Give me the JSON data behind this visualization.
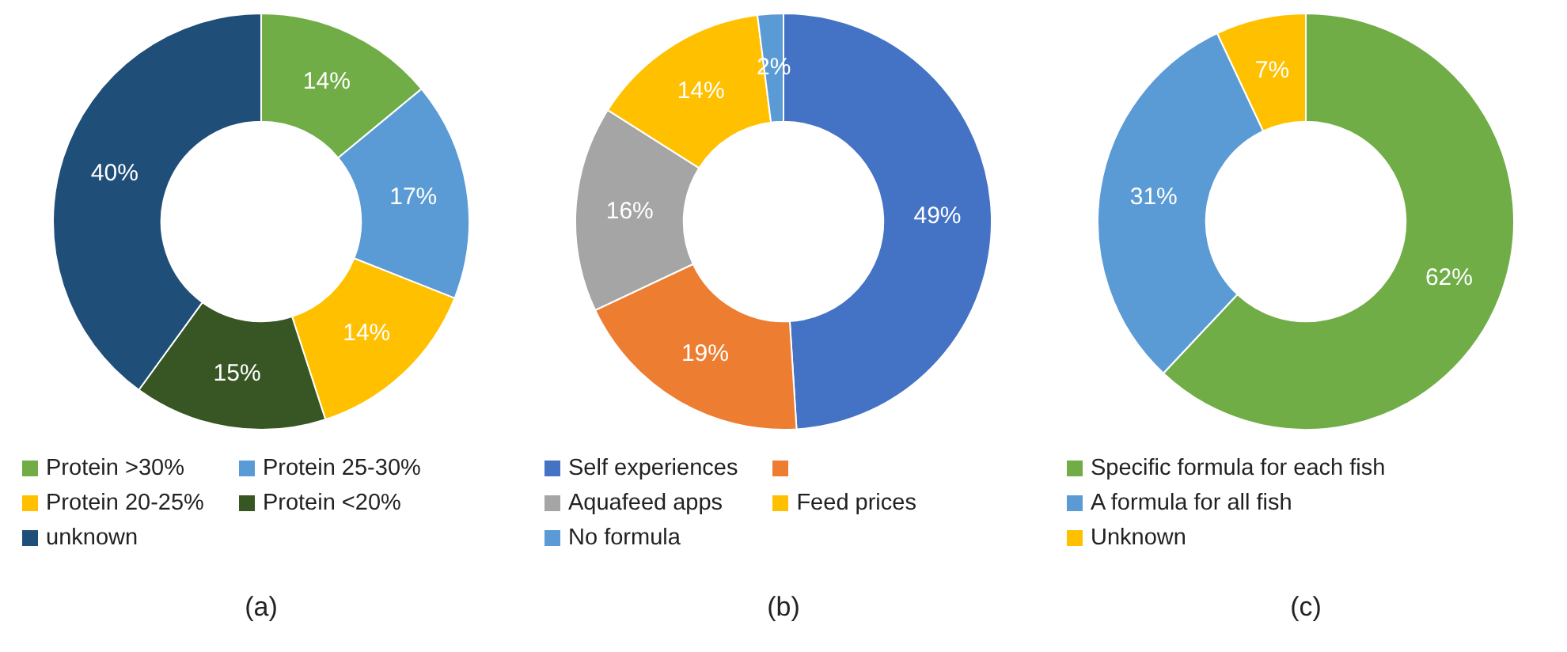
{
  "chart_data": [
    {
      "type": "donut",
      "title": "(a)",
      "categories": [
        "Protein >30%",
        "Protein 25-30%",
        "Protein 20-25%",
        "Protein <20%",
        "unknown"
      ],
      "values": [
        14,
        17,
        14,
        15,
        40
      ],
      "colors": [
        "#70ad47",
        "#5b9bd5",
        "#ffc000",
        "#375623",
        "#1f4e79"
      ],
      "value_labels": [
        "14%",
        "17%",
        "14%",
        "15%",
        "40%"
      ],
      "legend": "bottom"
    },
    {
      "type": "donut",
      "title": "(b)",
      "categories": [
        "Self experiences",
        null,
        "Aquafeed apps",
        "Feed prices",
        "No formula"
      ],
      "values": [
        49,
        19,
        16,
        14,
        2
      ],
      "colors": [
        "#4472c4",
        "#ed7d31",
        "#a5a5a5",
        "#ffc000",
        "#5b9bd5"
      ],
      "value_labels": [
        "49%",
        "19%",
        "16%",
        "14%",
        "2%"
      ],
      "legend": "bottom"
    },
    {
      "type": "donut",
      "title": "(c)",
      "categories": [
        "Specific formula for each fish",
        "A formula for all fish",
        "Unknown"
      ],
      "values": [
        62,
        31,
        7
      ],
      "colors": [
        "#70ad47",
        "#5b9bd5",
        "#ffc000"
      ],
      "value_labels": [
        "62%",
        "31%",
        "7%"
      ],
      "legend": "bottom"
    }
  ]
}
